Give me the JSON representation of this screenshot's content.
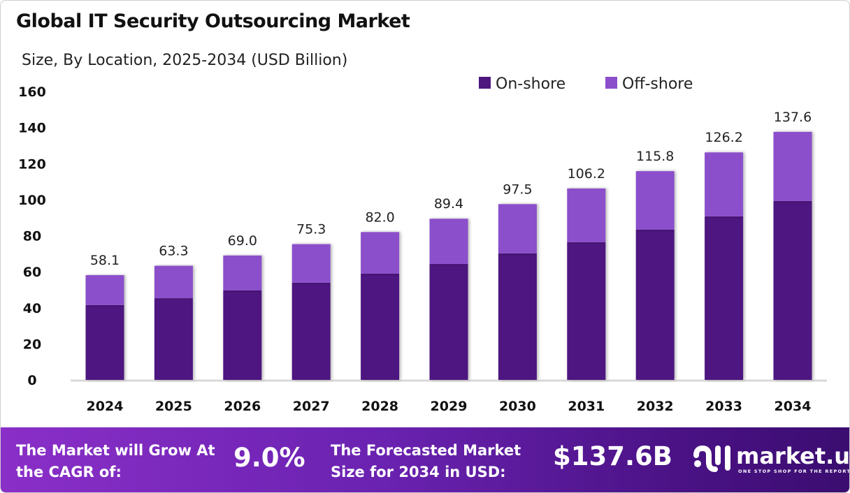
{
  "chart_data": {
    "type": "bar",
    "stacked": true,
    "title": "Global IT Security Outsourcing Market",
    "subtitle": "Size, By Location, 2025-2034 (USD Billion)",
    "categories": [
      "2024",
      "2025",
      "2026",
      "2027",
      "2028",
      "2029",
      "2030",
      "2031",
      "2032",
      "2033",
      "2034"
    ],
    "series": [
      {
        "name": "On-shore",
        "color": "#4E1780",
        "values": [
          41.5,
          45.3,
          49.6,
          53.9,
          58.9,
          64.3,
          70.2,
          76.4,
          83.3,
          90.7,
          99.2
        ]
      },
      {
        "name": "Off-shore",
        "color": "#8B4FCB",
        "values": [
          16.6,
          18.0,
          19.4,
          21.4,
          23.1,
          25.1,
          27.3,
          29.8,
          32.5,
          35.5,
          38.4
        ]
      }
    ],
    "totals": [
      "58.1",
      "63.3",
      "69.0",
      "75.3",
      "82.0",
      "89.4",
      "97.5",
      "106.2",
      "115.8",
      "126.2",
      "137.6"
    ],
    "ylim": [
      0,
      160
    ],
    "yticks": [
      0,
      20,
      40,
      60,
      80,
      100,
      120,
      140,
      160
    ],
    "grid": false,
    "legend": "top-right"
  },
  "footer": {
    "cagr_label": "The Market will Grow At the CAGR of:",
    "cagr_value": "9.0%",
    "forecast_label": "The Forecasted Market Size for 2034 in USD:",
    "forecast_value": "$137.6B",
    "logo_name": "market.us",
    "logo_tagline": "ONE STOP SHOP FOR THE REPORTS"
  }
}
